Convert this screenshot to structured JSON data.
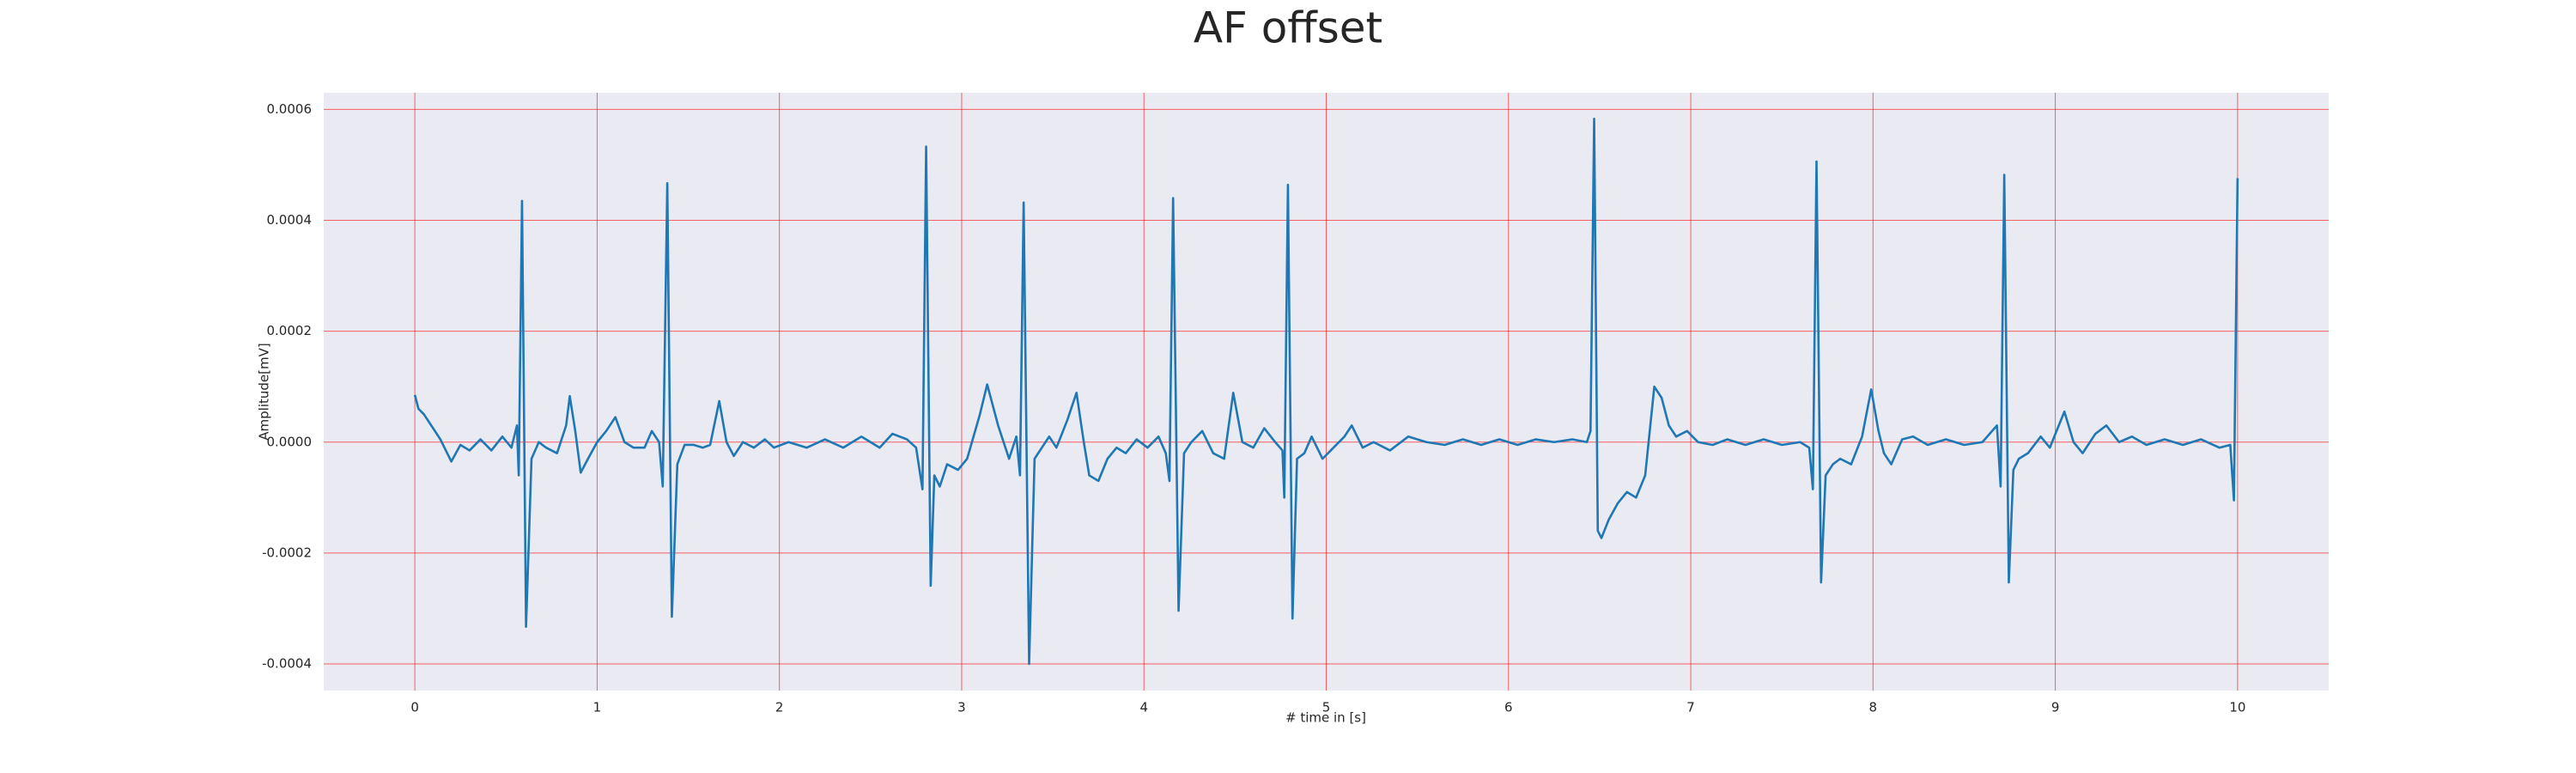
{
  "chart_data": {
    "type": "line",
    "title": "AF offset",
    "xlabel": "# time in [s]",
    "ylabel": "Amplitude[mV]",
    "color": "#1f77b4",
    "background": "#eaeaf2",
    "grid": true,
    "grid_color": "#ff0000",
    "xlim": [
      -0.5,
      10.5
    ],
    "xticks": [
      0,
      1,
      2,
      3,
      4,
      5,
      6,
      7,
      8,
      9,
      10
    ],
    "ylim": [
      -0.000448,
      0.00063
    ],
    "yticks": [
      -0.0004,
      -0.0002,
      {
        "value": 0,
        "label": "0.0000"
      },
      0.0002,
      0.0004,
      0.0006
    ],
    "x": [
      0,
      0.02,
      0.05,
      0.09,
      0.14,
      0.2,
      0.25,
      0.3,
      0.36,
      0.42,
      0.48,
      0.53,
      0.56,
      0.57,
      0.588,
      0.61,
      0.64,
      0.68,
      0.72,
      0.78,
      0.83,
      0.85,
      0.88,
      0.91,
      0.95,
      1.0,
      1.05,
      1.1,
      1.15,
      1.2,
      1.26,
      1.3,
      1.34,
      1.36,
      1.385,
      1.41,
      1.44,
      1.48,
      1.53,
      1.58,
      1.62,
      1.67,
      1.71,
      1.75,
      1.8,
      1.86,
      1.92,
      1.97,
      2.05,
      2.15,
      2.25,
      2.35,
      2.45,
      2.55,
      2.62,
      2.7,
      2.75,
      2.785,
      2.805,
      2.83,
      2.85,
      2.88,
      2.92,
      2.98,
      3.03,
      3.1,
      3.14,
      3.2,
      3.26,
      3.3,
      3.32,
      3.34,
      3.37,
      3.4,
      3.44,
      3.48,
      3.52,
      3.58,
      3.63,
      3.67,
      3.7,
      3.75,
      3.8,
      3.85,
      3.9,
      3.96,
      4.02,
      4.08,
      4.12,
      4.14,
      4.16,
      4.19,
      4.22,
      4.26,
      4.32,
      4.38,
      4.44,
      4.49,
      4.54,
      4.6,
      4.66,
      4.72,
      4.76,
      4.77,
      4.79,
      4.815,
      4.84,
      4.88,
      4.92,
      4.98,
      5.04,
      5.1,
      5.14,
      5.2,
      5.26,
      5.35,
      5.45,
      5.55,
      5.65,
      5.75,
      5.85,
      5.95,
      6.05,
      6.15,
      6.25,
      6.35,
      6.43,
      6.45,
      6.47,
      6.49,
      6.51,
      6.55,
      6.6,
      6.65,
      6.7,
      6.75,
      6.8,
      6.84,
      6.88,
      6.92,
      6.98,
      7.04,
      7.12,
      7.2,
      7.3,
      7.4,
      7.5,
      7.6,
      7.65,
      7.67,
      7.69,
      7.715,
      7.74,
      7.78,
      7.82,
      7.88,
      7.94,
      7.99,
      8.03,
      8.06,
      8.1,
      8.16,
      8.22,
      8.3,
      8.4,
      8.5,
      8.6,
      8.68,
      8.7,
      8.72,
      8.745,
      8.77,
      8.8,
      8.85,
      8.92,
      8.97,
      9.05,
      9.1,
      9.15,
      9.22,
      9.28,
      9.35,
      9.42,
      9.5,
      9.6,
      9.7,
      9.8,
      9.9,
      9.96,
      9.98,
      10.0
    ],
    "values": [
      8.5e-05,
      6e-05,
      5e-05,
      3e-05,
      5e-06,
      -3.5e-05,
      -5e-06,
      -1.5e-05,
      5e-06,
      -1.5e-05,
      1e-05,
      -1e-05,
      3e-05,
      -6e-05,
      0.000435,
      -0.000333,
      -3e-05,
      0,
      -1e-05,
      -2e-05,
      3e-05,
      8.3e-05,
      2e-05,
      -5.5e-05,
      -3e-05,
      0,
      2e-05,
      4.5e-05,
      0,
      -1e-05,
      -1e-05,
      2e-05,
      0,
      -8e-05,
      0.000467,
      -0.000315,
      -4e-05,
      -5e-06,
      -5e-06,
      -1e-05,
      -5e-06,
      7.4e-05,
      0,
      -2.5e-05,
      0,
      -1e-05,
      5e-06,
      -1e-05,
      0,
      -1e-05,
      5e-06,
      -1e-05,
      1e-05,
      -1e-05,
      1.5e-05,
      5e-06,
      -1e-05,
      -8.5e-05,
      0.000533,
      -0.000259,
      -6e-05,
      -8e-05,
      -4e-05,
      -5e-05,
      -3e-05,
      5e-05,
      0.000104,
      3e-05,
      -3e-05,
      1e-05,
      -6e-05,
      0.000432,
      -0.0004,
      -3e-05,
      -1e-05,
      1e-05,
      -1e-05,
      4e-05,
      8.9e-05,
      0,
      -6e-05,
      -7e-05,
      -3e-05,
      -1e-05,
      -2e-05,
      5e-06,
      -1e-05,
      1e-05,
      -2e-05,
      -7e-05,
      0.00044,
      -0.000304,
      -2e-05,
      0,
      2e-05,
      -2e-05,
      -3e-05,
      8.9e-05,
      0,
      -1e-05,
      2.5e-05,
      0,
      -1.5e-05,
      -0.0001,
      0.000464,
      -0.000318,
      -3e-05,
      -2e-05,
      1e-05,
      -3e-05,
      -1e-05,
      1e-05,
      3e-05,
      -1e-05,
      0,
      -1.5e-05,
      1e-05,
      0,
      -5e-06,
      5e-06,
      -5e-06,
      5e-06,
      -5e-06,
      5e-06,
      0,
      5e-06,
      0,
      2e-05,
      0.000583,
      -0.00016,
      -0.000173,
      -0.00014,
      -0.00011,
      -9e-05,
      -0.0001,
      -6e-05,
      0.0001,
      8e-05,
      3e-05,
      1e-05,
      2e-05,
      0,
      -5e-06,
      5e-06,
      -5e-06,
      5e-06,
      -5e-06,
      0,
      -1e-05,
      -8.5e-05,
      0.000506,
      -0.000253,
      -6e-05,
      -4e-05,
      -3e-05,
      -4e-05,
      1e-05,
      9.5e-05,
      2e-05,
      -2e-05,
      -4e-05,
      5e-06,
      1e-05,
      -5e-06,
      5e-06,
      -5e-06,
      0,
      3e-05,
      -8e-05,
      0.000482,
      -0.000253,
      -5e-05,
      -3e-05,
      -2e-05,
      1e-05,
      -1e-05,
      5.5e-05,
      0,
      -2e-05,
      1.5e-05,
      3e-05,
      0,
      1e-05,
      -5e-06,
      5e-06,
      -5e-06,
      5e-06,
      -1e-05,
      -5e-06,
      -0.000105,
      0.000476
    ]
  }
}
